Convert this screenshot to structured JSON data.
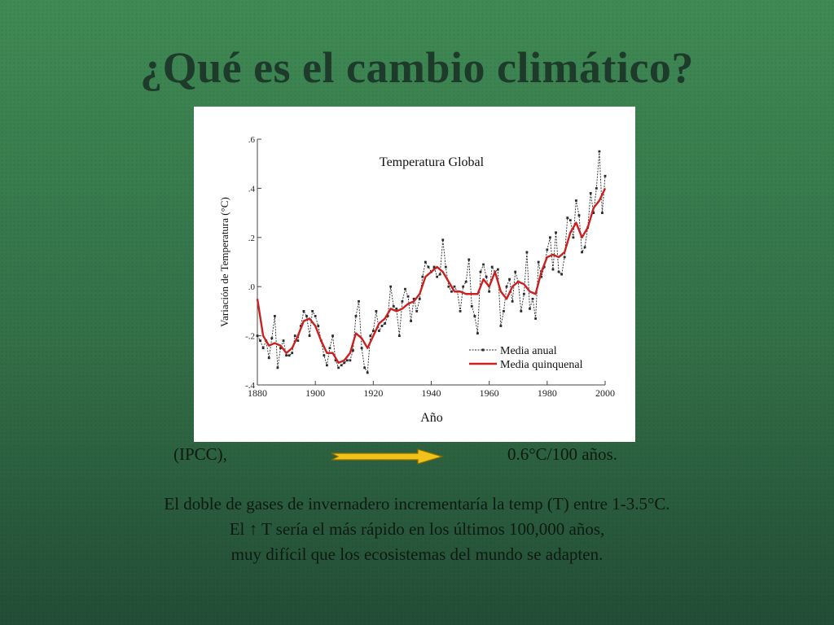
{
  "slide": {
    "title": "¿Qué es el cambio climático?",
    "source_label": "(IPCC),",
    "rate_label": "0.6°C/100 años.",
    "lines": [
      "El doble de gases de invernadero incrementaría la temp (T) entre 1-3.5°C.",
      "El  ↑ T sería el más rápido en los últimos 100,000 años,",
      "muy difícil que los ecosistemas del mundo se adapten."
    ],
    "arrow_icon": "right-arrow-icon"
  },
  "colors": {
    "annual": "#2a2a2a",
    "quinquennial": "#cc1f1f",
    "arrow_fill": "#f2c21a",
    "arrow_stroke": "#8a6d00"
  },
  "chart_data": {
    "type": "line",
    "title": "Temperatura Global",
    "xlabel": "Año",
    "ylabel": "Variación de Temperatura (°C)",
    "xlim": [
      1880,
      2000
    ],
    "ylim": [
      -0.4,
      0.6
    ],
    "x_ticks": [
      "1880",
      "1900",
      "1920",
      "1940",
      "1960",
      "1980",
      "2000"
    ],
    "y_ticks": [
      ".6",
      ".4",
      ".2",
      ".0",
      "-.2",
      "-.4"
    ],
    "y_tick_values": [
      0.6,
      0.4,
      0.2,
      0.0,
      -0.2,
      -0.4
    ],
    "legend_position": "bottom-right",
    "series": [
      {
        "name": "Media anual",
        "style": "dashed-markers",
        "x": [
          1880,
          1881,
          1882,
          1883,
          1884,
          1885,
          1886,
          1887,
          1888,
          1889,
          1890,
          1891,
          1892,
          1893,
          1894,
          1895,
          1896,
          1897,
          1898,
          1899,
          1900,
          1901,
          1902,
          1903,
          1904,
          1905,
          1906,
          1907,
          1908,
          1909,
          1910,
          1911,
          1912,
          1913,
          1914,
          1915,
          1916,
          1917,
          1918,
          1919,
          1920,
          1921,
          1922,
          1923,
          1924,
          1925,
          1926,
          1927,
          1928,
          1929,
          1930,
          1931,
          1932,
          1933,
          1934,
          1935,
          1936,
          1937,
          1938,
          1939,
          1940,
          1941,
          1942,
          1943,
          1944,
          1945,
          1946,
          1947,
          1948,
          1949,
          1950,
          1951,
          1952,
          1953,
          1954,
          1955,
          1956,
          1957,
          1958,
          1959,
          1960,
          1961,
          1962,
          1963,
          1964,
          1965,
          1966,
          1967,
          1968,
          1969,
          1970,
          1971,
          1972,
          1973,
          1974,
          1975,
          1976,
          1977,
          1978,
          1979,
          1980,
          1981,
          1982,
          1983,
          1984,
          1985,
          1986,
          1987,
          1988,
          1989,
          1990,
          1991,
          1992,
          1993,
          1994,
          1995,
          1996,
          1997,
          1998,
          1999,
          2000
        ],
        "values": [
          -0.2,
          -0.22,
          -0.25,
          -0.22,
          -0.29,
          -0.21,
          -0.12,
          -0.33,
          -0.25,
          -0.22,
          -0.28,
          -0.28,
          -0.27,
          -0.2,
          -0.22,
          -0.16,
          -0.1,
          -0.12,
          -0.2,
          -0.1,
          -0.12,
          -0.16,
          -0.22,
          -0.28,
          -0.32,
          -0.25,
          -0.2,
          -0.3,
          -0.33,
          -0.32,
          -0.31,
          -0.3,
          -0.3,
          -0.26,
          -0.12,
          -0.06,
          -0.25,
          -0.33,
          -0.35,
          -0.2,
          -0.18,
          -0.1,
          -0.18,
          -0.16,
          -0.15,
          -0.12,
          0.0,
          -0.08,
          -0.09,
          -0.2,
          -0.06,
          -0.01,
          -0.04,
          -0.14,
          -0.05,
          -0.1,
          -0.05,
          0.04,
          0.1,
          0.08,
          0.06,
          0.08,
          0.04,
          0.05,
          0.19,
          0.08,
          0.0,
          -0.02,
          0.0,
          -0.02,
          -0.1,
          0.0,
          0.02,
          0.11,
          -0.08,
          -0.12,
          -0.19,
          0.06,
          0.09,
          0.04,
          -0.02,
          0.08,
          0.06,
          0.07,
          -0.16,
          -0.1,
          0.0,
          0.03,
          -0.06,
          0.06,
          0.02,
          -0.1,
          -0.03,
          0.14,
          -0.09,
          -0.05,
          -0.13,
          0.1,
          0.04,
          0.08,
          0.15,
          0.2,
          0.07,
          0.22,
          0.06,
          0.05,
          0.12,
          0.28,
          0.27,
          0.2,
          0.35,
          0.29,
          0.14,
          0.16,
          0.24,
          0.38,
          0.3,
          0.4,
          0.55,
          0.3,
          0.45
        ]
      },
      {
        "name": "Media quinquenal",
        "style": "solid",
        "x": [
          1880,
          1882,
          1884,
          1886,
          1888,
          1890,
          1892,
          1894,
          1896,
          1898,
          1900,
          1902,
          1904,
          1906,
          1908,
          1910,
          1912,
          1914,
          1916,
          1918,
          1920,
          1922,
          1924,
          1926,
          1928,
          1930,
          1932,
          1934,
          1936,
          1938,
          1940,
          1942,
          1944,
          1946,
          1948,
          1950,
          1952,
          1954,
          1956,
          1958,
          1960,
          1962,
          1964,
          1966,
          1968,
          1970,
          1972,
          1974,
          1976,
          1978,
          1980,
          1982,
          1984,
          1986,
          1988,
          1990,
          1992,
          1994,
          1996,
          1998,
          2000
        ],
        "values": [
          -0.05,
          -0.2,
          -0.24,
          -0.23,
          -0.24,
          -0.27,
          -0.25,
          -0.2,
          -0.14,
          -0.13,
          -0.16,
          -0.22,
          -0.27,
          -0.27,
          -0.31,
          -0.3,
          -0.27,
          -0.19,
          -0.21,
          -0.25,
          -0.2,
          -0.15,
          -0.13,
          -0.09,
          -0.1,
          -0.09,
          -0.07,
          -0.06,
          -0.03,
          0.04,
          0.06,
          0.08,
          0.06,
          0.02,
          -0.02,
          -0.02,
          -0.03,
          -0.03,
          -0.03,
          0.03,
          0.0,
          0.06,
          -0.02,
          -0.05,
          0.0,
          0.02,
          0.01,
          -0.02,
          -0.03,
          0.06,
          0.12,
          0.13,
          0.12,
          0.14,
          0.22,
          0.26,
          0.2,
          0.24,
          0.32,
          0.35,
          0.4
        ]
      }
    ]
  }
}
